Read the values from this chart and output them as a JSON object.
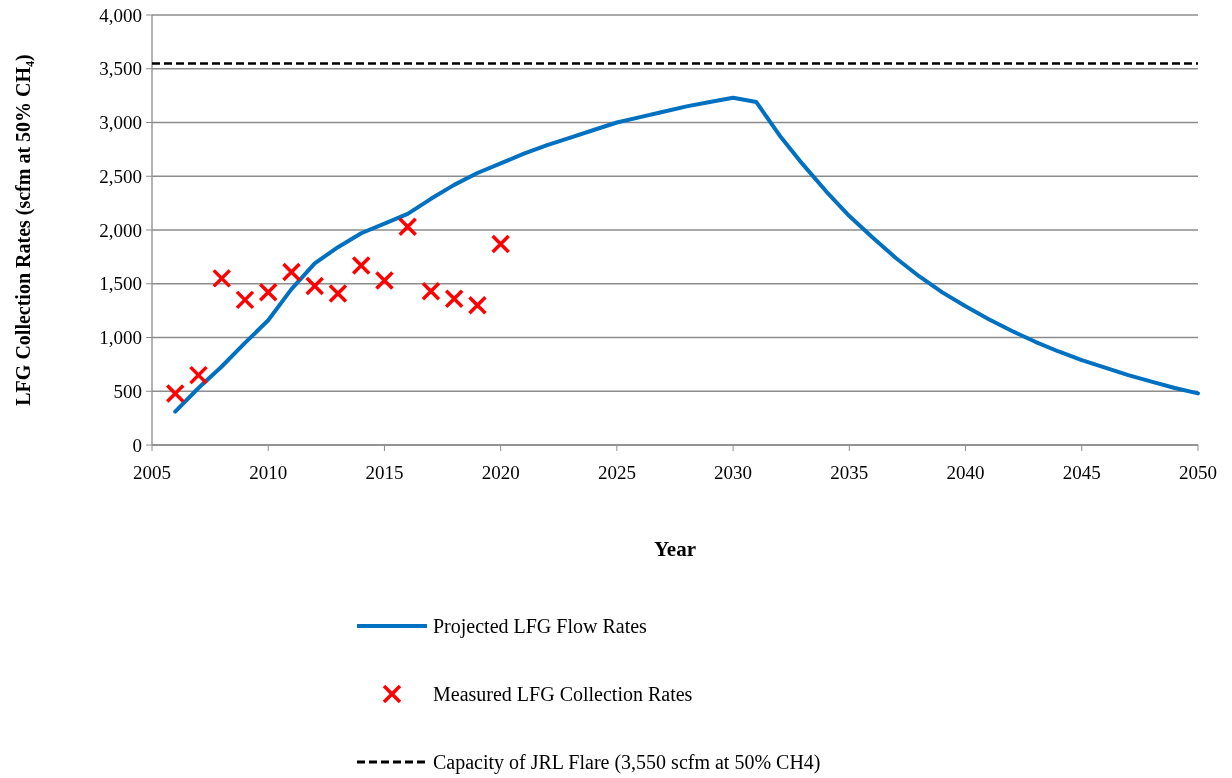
{
  "chart_data": {
    "type": "line",
    "xlabel": "Year",
    "ylabel": "LFG Collection Rates (scfm at 50% CH₄)",
    "xlim": [
      2005,
      2050
    ],
    "xticks": [
      2005,
      2010,
      2015,
      2020,
      2025,
      2030,
      2035,
      2040,
      2045,
      2050
    ],
    "ylim": [
      0,
      4000
    ],
    "yticks": [
      {
        "value": 0,
        "label": "0"
      },
      {
        "value": 500,
        "label": "500"
      },
      {
        "value": 1000,
        "label": "1,000"
      },
      {
        "value": 1500,
        "label": "1,500"
      },
      {
        "value": 2000,
        "label": "2,000"
      },
      {
        "value": 2500,
        "label": "2,500"
      },
      {
        "value": 3000,
        "label": "3,000"
      },
      {
        "value": 3500,
        "label": "3,500"
      },
      {
        "value": 4000,
        "label": "4,000"
      }
    ],
    "grid": "y",
    "legend": "bottom",
    "series": [
      {
        "name": "Projected LFG Flow Rates",
        "color": "#0070c0",
        "marker": "none",
        "x": [
          2006,
          2007,
          2008,
          2009,
          2010,
          2011,
          2012,
          2013,
          2014,
          2015,
          2016,
          2017,
          2018,
          2019,
          2020,
          2021,
          2022,
          2023,
          2024,
          2025,
          2026,
          2027,
          2028,
          2029,
          2030,
          2031,
          2032,
          2033,
          2034,
          2035,
          2036,
          2037,
          2038,
          2039,
          2040,
          2041,
          2042,
          2043,
          2044,
          2045,
          2046,
          2047,
          2048,
          2049,
          2050
        ],
        "values": [
          310,
          530,
          730,
          950,
          1160,
          1450,
          1690,
          1840,
          1970,
          2060,
          2150,
          2290,
          2420,
          2530,
          2620,
          2710,
          2790,
          2860,
          2930,
          3000,
          3050,
          3100,
          3150,
          3190,
          3230,
          3190,
          2880,
          2610,
          2360,
          2130,
          1930,
          1740,
          1570,
          1420,
          1290,
          1170,
          1060,
          960,
          870,
          790,
          720,
          650,
          590,
          530,
          480
        ]
      },
      {
        "name": "Measured LFG Collection Rates",
        "type": "scatter",
        "color": "#ff0000",
        "marker": "cross",
        "x": [
          2006,
          2007,
          2008,
          2009,
          2010,
          2011,
          2012,
          2013,
          2014,
          2015,
          2016,
          2017,
          2018,
          2019,
          2020
        ],
        "values": [
          480,
          650,
          1550,
          1350,
          1420,
          1610,
          1480,
          1410,
          1670,
          1530,
          2030,
          1430,
          1360,
          1300,
          1870
        ]
      }
    ],
    "ref_lines": [
      {
        "axis": "y",
        "value": 3550,
        "label": "Capacity of JRL Flare (3,550 scfm at 50% CH4)",
        "color": "#000000",
        "line_style": "dashed"
      }
    ]
  }
}
